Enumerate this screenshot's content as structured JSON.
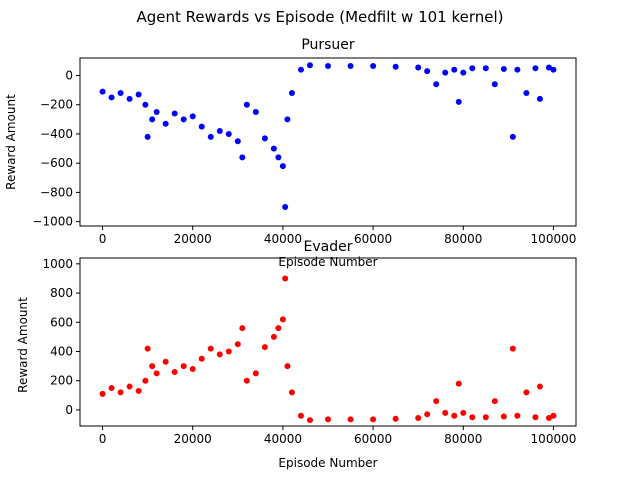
{
  "figure": {
    "suptitle": "Agent Rewards vs Episode (Medfilt w 101 kernel)"
  },
  "chart_data": [
    {
      "type": "scatter",
      "title": "Pursuer",
      "xlabel": "Episode Number",
      "ylabel": "Reward Amount",
      "xlim": [
        -5000,
        105000
      ],
      "ylim": [
        -1030,
        120
      ],
      "xticks": [
        0,
        20000,
        40000,
        60000,
        80000,
        100000
      ],
      "yticks": [
        -1000,
        -800,
        -600,
        -400,
        -200,
        0
      ],
      "color": "#0000ff",
      "series": [
        {
          "values": [
            [
              0,
              -110
            ],
            [
              2000,
              -150
            ],
            [
              4000,
              -120
            ],
            [
              6000,
              -160
            ],
            [
              8000,
              -130
            ],
            [
              9500,
              -200
            ],
            [
              10000,
              -420
            ],
            [
              11000,
              -300
            ],
            [
              12000,
              -250
            ],
            [
              14000,
              -330
            ],
            [
              16000,
              -260
            ],
            [
              18000,
              -300
            ],
            [
              20000,
              -280
            ],
            [
              22000,
              -350
            ],
            [
              24000,
              -420
            ],
            [
              26000,
              -380
            ],
            [
              28000,
              -400
            ],
            [
              30000,
              -450
            ],
            [
              31000,
              -560
            ],
            [
              32000,
              -200
            ],
            [
              34000,
              -250
            ],
            [
              36000,
              -430
            ],
            [
              38000,
              -500
            ],
            [
              39000,
              -560
            ],
            [
              40000,
              -620
            ],
            [
              40500,
              -900
            ],
            [
              41000,
              -300
            ],
            [
              42000,
              -120
            ],
            [
              44000,
              40
            ],
            [
              46000,
              70
            ],
            [
              50000,
              65
            ],
            [
              55000,
              65
            ],
            [
              60000,
              65
            ],
            [
              65000,
              60
            ],
            [
              70000,
              55
            ],
            [
              72000,
              30
            ],
            [
              74000,
              -60
            ],
            [
              76000,
              20
            ],
            [
              78000,
              40
            ],
            [
              79000,
              -180
            ],
            [
              80000,
              20
            ],
            [
              82000,
              50
            ],
            [
              85000,
              50
            ],
            [
              87000,
              -60
            ],
            [
              89000,
              45
            ],
            [
              91000,
              -420
            ],
            [
              92000,
              40
            ],
            [
              94000,
              -120
            ],
            [
              96000,
              50
            ],
            [
              97000,
              -160
            ],
            [
              99000,
              55
            ],
            [
              100000,
              40
            ]
          ]
        }
      ]
    },
    {
      "type": "scatter",
      "title": "Evader",
      "xlabel": "Episode Number",
      "ylabel": "Reward Amount",
      "xlim": [
        -5000,
        105000
      ],
      "ylim": [
        -110,
        1040
      ],
      "xticks": [
        0,
        20000,
        40000,
        60000,
        80000,
        100000
      ],
      "yticks": [
        0,
        200,
        400,
        600,
        800,
        1000
      ],
      "color": "#ff0000",
      "series": [
        {
          "values": [
            [
              0,
              110
            ],
            [
              2000,
              150
            ],
            [
              4000,
              120
            ],
            [
              6000,
              160
            ],
            [
              8000,
              130
            ],
            [
              9500,
              200
            ],
            [
              10000,
              420
            ],
            [
              11000,
              300
            ],
            [
              12000,
              250
            ],
            [
              14000,
              330
            ],
            [
              16000,
              260
            ],
            [
              18000,
              300
            ],
            [
              20000,
              280
            ],
            [
              22000,
              350
            ],
            [
              24000,
              420
            ],
            [
              26000,
              380
            ],
            [
              28000,
              400
            ],
            [
              30000,
              450
            ],
            [
              31000,
              560
            ],
            [
              32000,
              200
            ],
            [
              34000,
              250
            ],
            [
              36000,
              430
            ],
            [
              38000,
              500
            ],
            [
              39000,
              560
            ],
            [
              40000,
              620
            ],
            [
              40500,
              900
            ],
            [
              41000,
              300
            ],
            [
              42000,
              120
            ],
            [
              44000,
              -40
            ],
            [
              46000,
              -70
            ],
            [
              50000,
              -65
            ],
            [
              55000,
              -65
            ],
            [
              60000,
              -65
            ],
            [
              65000,
              -60
            ],
            [
              70000,
              -55
            ],
            [
              72000,
              -30
            ],
            [
              74000,
              60
            ],
            [
              76000,
              -20
            ],
            [
              78000,
              -40
            ],
            [
              79000,
              180
            ],
            [
              80000,
              -20
            ],
            [
              82000,
              -50
            ],
            [
              85000,
              -50
            ],
            [
              87000,
              60
            ],
            [
              89000,
              -45
            ],
            [
              91000,
              420
            ],
            [
              92000,
              -40
            ],
            [
              94000,
              120
            ],
            [
              96000,
              -50
            ],
            [
              97000,
              160
            ],
            [
              99000,
              -55
            ],
            [
              100000,
              -40
            ]
          ]
        }
      ]
    }
  ]
}
